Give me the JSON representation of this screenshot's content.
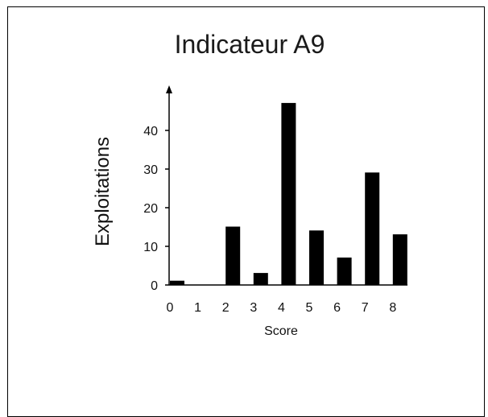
{
  "chart_data": {
    "type": "bar",
    "title": "Indicateur A9",
    "xlabel": "Score",
    "ylabel": "Exploitations",
    "categories": [
      "0",
      "1",
      "2",
      "3",
      "4",
      "5",
      "6",
      "7",
      "8"
    ],
    "values": [
      1,
      0,
      15,
      3,
      47,
      14,
      7,
      29,
      13
    ],
    "yticks": [
      0,
      10,
      20,
      30,
      40
    ],
    "ylim": [
      0,
      50
    ],
    "grid": false,
    "legend": "none",
    "bar_color": "#000000"
  }
}
